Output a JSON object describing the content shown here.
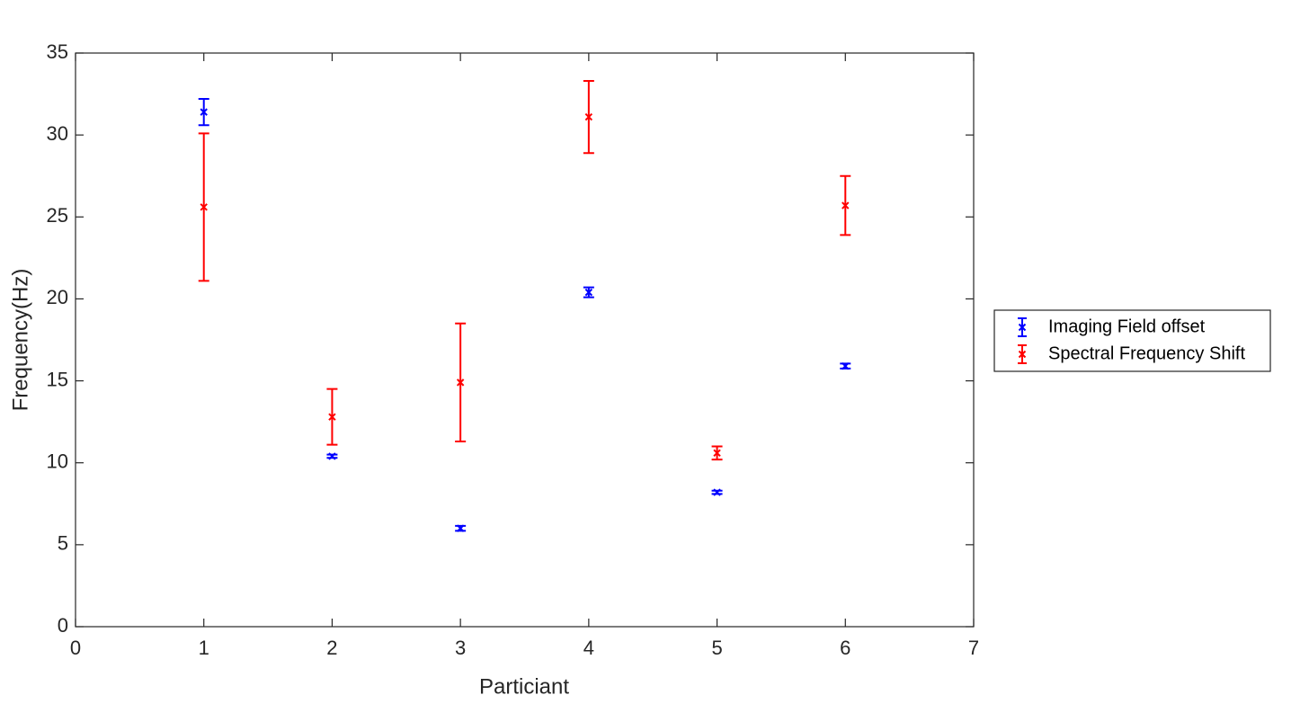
{
  "chart_data": {
    "type": "errorbar",
    "xlabel": "Particiant",
    "ylabel": "Frequency(Hz)",
    "x": [
      1,
      2,
      3,
      4,
      5,
      6
    ],
    "series": [
      {
        "name": "Imaging Field offset",
        "color": "#0000ff",
        "values": [
          31.4,
          10.4,
          6.0,
          20.4,
          8.2,
          15.9
        ],
        "errors": [
          0.8,
          0.1,
          0.15,
          0.3,
          0.1,
          0.15
        ]
      },
      {
        "name": "Spectral Frequency Shift",
        "color": "#ff0000",
        "values": [
          25.6,
          12.8,
          14.9,
          31.1,
          10.6,
          25.7
        ],
        "errors": [
          4.5,
          1.7,
          3.6,
          2.2,
          0.4,
          1.8
        ]
      }
    ],
    "xlim": [
      0,
      7
    ],
    "xticks": [
      0,
      1,
      2,
      3,
      4,
      5,
      6,
      7
    ],
    "ylim": [
      0,
      35
    ],
    "yticks": [
      0,
      5,
      10,
      15,
      20,
      25,
      30,
      35
    ],
    "grid": false,
    "legend_position": "outside right"
  }
}
